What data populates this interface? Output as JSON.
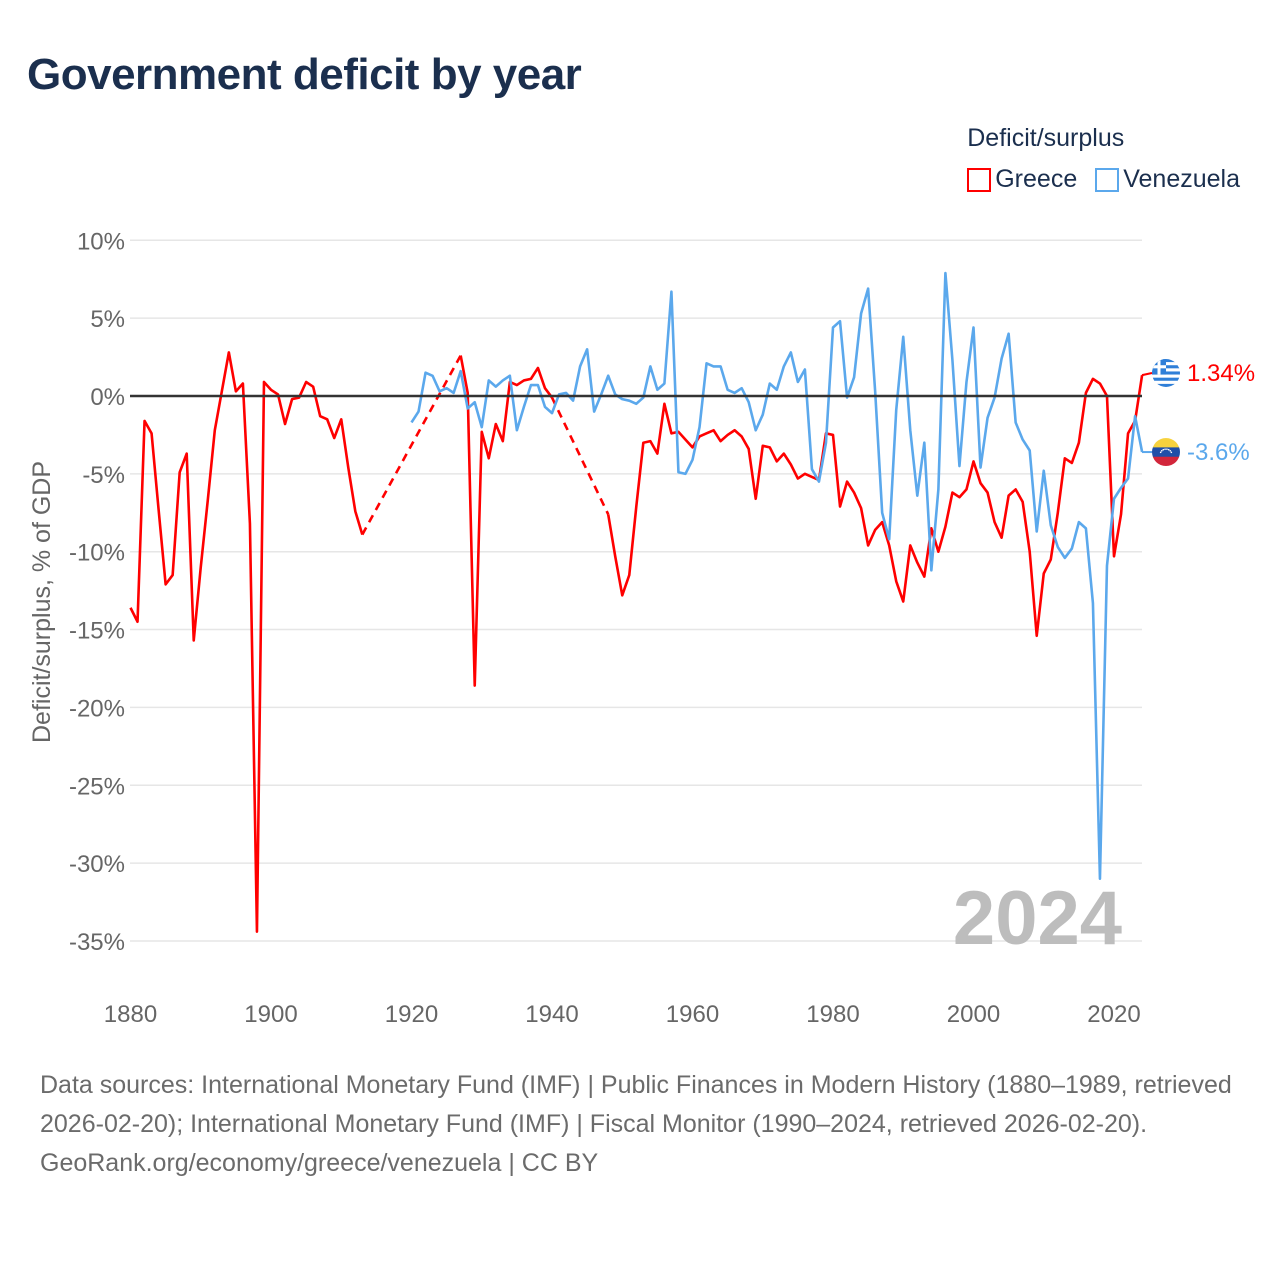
{
  "title": "Government deficit by year",
  "legend": {
    "title": "Deficit/surplus"
  },
  "colors": {
    "greece": "#ff0000",
    "venezuela": "#5ba8ec",
    "zero_line": "#333333",
    "grid": "#e6e6e6"
  },
  "chart_data": {
    "type": "line",
    "title": "Government deficit by year",
    "xlabel": "",
    "ylabel": "Deficit/surplus, % of GDP",
    "xlim": [
      1880,
      2024
    ],
    "ylim": [
      -35,
      10
    ],
    "x_ticks": [
      1880,
      1900,
      1920,
      1940,
      1960,
      1980,
      2000,
      2020
    ],
    "x_tick_labels": [
      "1880",
      "1900",
      "1920",
      "1940",
      "1960",
      "1980",
      "2000",
      "2020"
    ],
    "y_ticks": [
      10,
      5,
      0,
      -5,
      -10,
      -15,
      -20,
      -25,
      -30,
      -35
    ],
    "y_tick_labels": [
      "10%",
      "5%",
      "0%",
      "-5%",
      "-10%",
      "-15%",
      "-20%",
      "-25%",
      "-30%",
      "-35%"
    ],
    "grid": true,
    "legend_position": "top-right",
    "year_watermark": "2024",
    "series": [
      {
        "name": "Greece",
        "color": "#ff0000",
        "start_year": 1880,
        "end_label": "1.34%",
        "flag": "greece-flag",
        "values": [
          -13.6,
          -14.5,
          -1.6,
          -2.4,
          -7.3,
          -12.1,
          -11.5,
          -4.9,
          -3.7,
          -15.7,
          -11.0,
          -6.7,
          -2.2,
          0.3,
          2.8,
          0.3,
          0.8,
          -8.2,
          -34.4,
          0.9,
          0.4,
          0.1,
          -1.8,
          -0.2,
          -0.1,
          0.9,
          0.6,
          -1.3,
          -1.5,
          -2.7,
          -1.5,
          -4.6,
          -7.4,
          -8.9,
          null,
          null,
          null,
          null,
          null,
          null,
          null,
          null,
          null,
          null,
          null,
          null,
          null,
          2.6,
          0.2,
          -18.6,
          -2.3,
          -4.0,
          -1.8,
          -2.9,
          0.9,
          0.7,
          1.0,
          1.1,
          1.8,
          0.5,
          -0.1,
          null,
          null,
          null,
          null,
          null,
          null,
          null,
          -7.6,
          -10.3,
          -12.8,
          -11.5,
          -7.1,
          -3.0,
          -2.9,
          -3.7,
          -0.5,
          -2.4,
          -2.3,
          -2.8,
          -3.3,
          -2.6,
          -2.4,
          -2.2,
          -2.9,
          -2.5,
          -2.2,
          -2.6,
          -3.4,
          -6.6,
          -3.2,
          -3.3,
          -4.2,
          -3.7,
          -4.4,
          -5.3,
          -5.0,
          -5.2,
          -5.4,
          -2.4,
          -2.5,
          -7.1,
          -5.5,
          -6.2,
          -7.2,
          -9.6,
          -8.6,
          -8.1,
          -9.6,
          -11.9,
          -13.2,
          -9.6,
          -10.7,
          -11.6,
          -8.5,
          -10.0,
          -8.4,
          -6.2,
          -6.5,
          -6.0,
          -4.2,
          -5.6,
          -6.2,
          -8.1,
          -9.1,
          -6.4,
          -6.0,
          -6.8,
          -10.0,
          -15.4,
          -11.4,
          -10.5,
          -7.5,
          -4.0,
          -4.3,
          -3.0,
          0.2,
          1.1,
          0.8,
          0.0,
          -10.3,
          -7.6,
          -2.4,
          -1.6,
          1.34
        ]
      },
      {
        "name": "Venezuela",
        "color": "#5ba8ec",
        "start_year": 1920,
        "end_label": "-3.6%",
        "flag": "venezuela-flag",
        "values": [
          -1.7,
          -1.0,
          1.5,
          1.3,
          0.3,
          0.5,
          0.2,
          1.6,
          -0.8,
          -0.4,
          -2.0,
          1.0,
          0.6,
          1.0,
          1.3,
          -2.2,
          -0.7,
          0.7,
          0.7,
          -0.7,
          -1.1,
          0.1,
          0.2,
          -0.3,
          1.9,
          3.0,
          -1.0,
          0.1,
          1.3,
          0.1,
          -0.2,
          -0.3,
          -0.5,
          -0.1,
          1.9,
          0.4,
          0.8,
          6.7,
          -4.9,
          -5.0,
          -4.1,
          -2.0,
          2.1,
          1.9,
          1.9,
          0.4,
          0.2,
          0.5,
          -0.4,
          -2.2,
          -1.2,
          0.8,
          0.4,
          1.9,
          2.8,
          0.9,
          1.7,
          -4.7,
          -5.5,
          -3.0,
          4.4,
          4.8,
          -0.1,
          1.2,
          5.3,
          6.9,
          0.3,
          -7.5,
          -9.2,
          -0.9,
          3.8,
          -2.2,
          -6.4,
          -3.0,
          -11.2,
          -6.0,
          7.9,
          2.3,
          -4.5,
          0.9,
          4.4,
          -4.6,
          -1.4,
          -0.1,
          2.4,
          4.0,
          -1.7,
          -2.8,
          -3.5,
          -8.7,
          -4.8,
          -8.3,
          -9.7,
          -10.4,
          -9.8,
          -8.1,
          -8.5,
          -13.3,
          -31.0,
          -10.9,
          -6.6,
          -5.9,
          -5.3,
          -1.3,
          -3.6
        ]
      }
    ]
  },
  "footer": {
    "sources": "Data sources: International Monetary Fund (IMF) | Public Finances in Modern History (1880–1989, retrieved 2026-02-20); International Monetary Fund (IMF) | Fiscal Monitor (1990–2024, retrieved 2026-02-20).",
    "attribution": "GeoRank.org/economy/greece/venezuela | CC BY"
  }
}
